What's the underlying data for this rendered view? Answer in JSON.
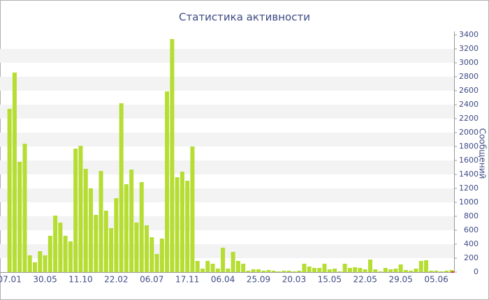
{
  "chart_data": {
    "type": "bar",
    "title": "Статистика активности",
    "y_label": "Сообщений",
    "categories": [
      "07.01",
      null,
      null,
      null,
      null,
      null,
      null,
      "30.05",
      null,
      null,
      null,
      null,
      null,
      null,
      "11.10",
      null,
      null,
      null,
      null,
      null,
      null,
      "22.02",
      null,
      null,
      null,
      null,
      null,
      null,
      "06.07",
      null,
      null,
      null,
      null,
      null,
      null,
      "17.11",
      null,
      null,
      null,
      null,
      null,
      null,
      "06.04",
      null,
      null,
      null,
      null,
      null,
      null,
      "25.09",
      null,
      null,
      null,
      null,
      null,
      null,
      "20.03",
      null,
      null,
      null,
      null,
      null,
      null,
      "15.05",
      null,
      null,
      null,
      null,
      null,
      null,
      "22.05",
      null,
      null,
      null,
      null,
      null,
      null,
      "29.05",
      null,
      null,
      null,
      null,
      null,
      null,
      "05.06",
      null,
      null,
      null
    ],
    "values": [
      2340,
      2860,
      1580,
      1840,
      240,
      140,
      300,
      240,
      520,
      810,
      710,
      520,
      440,
      1770,
      1810,
      1480,
      1200,
      820,
      1450,
      880,
      630,
      1060,
      2420,
      1260,
      1470,
      710,
      1290,
      670,
      500,
      260,
      480,
      2590,
      3340,
      1360,
      1440,
      1310,
      1800,
      160,
      50,
      160,
      120,
      50,
      350,
      50,
      290,
      160,
      120,
      20,
      40,
      40,
      20,
      30,
      20,
      10,
      20,
      20,
      10,
      20,
      120,
      80,
      60,
      60,
      120,
      40,
      50,
      10,
      120,
      60,
      70,
      60,
      40,
      180,
      40,
      10,
      60,
      40,
      50,
      110,
      30,
      20,
      50,
      160,
      170,
      20,
      20,
      10,
      20,
      30
    ],
    "color": "#b5dd32",
    "ylim": [
      0,
      3400
    ],
    "yticks": [
      0,
      200,
      400,
      600,
      800,
      1000,
      1200,
      1400,
      1600,
      1800,
      2000,
      2200,
      2400,
      2600,
      2800,
      3000,
      3200,
      3400
    ],
    "grid": true
  }
}
